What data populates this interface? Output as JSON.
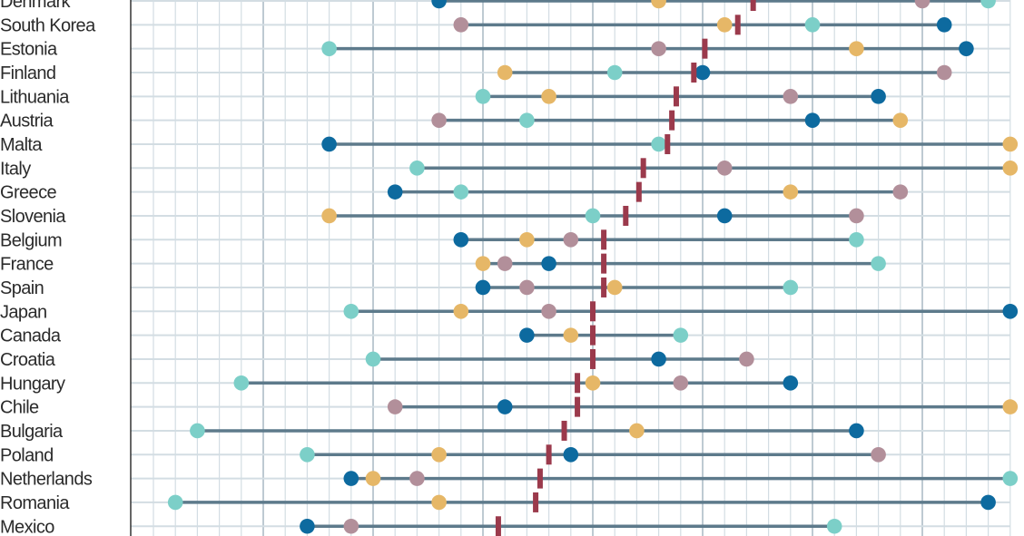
{
  "chart_data": {
    "type": "dot-range",
    "title": "",
    "xlabel": "",
    "ylabel": "",
    "xlim": [
      -1,
      39
    ],
    "x_major_step": 5,
    "x_minor_step": 1,
    "grid": true,
    "legend": "none",
    "categories": [
      "Denmark",
      "South Korea",
      "Estonia",
      "Finland",
      "Lithuania",
      "Austria",
      "Malta",
      "Italy",
      "Greece",
      "Slovenia",
      "Belgium",
      "France",
      "Spain",
      "Japan",
      "Canada",
      "Croatia",
      "Hungary",
      "Chile",
      "Bulgaria",
      "Poland",
      "Netherlands",
      "Romania",
      "Mexico"
    ],
    "series": [
      {
        "color": "#0d6a9f",
        "values": [
          13,
          36,
          37,
          25,
          33,
          30,
          8,
          null,
          11,
          26,
          14,
          18,
          15,
          39,
          17,
          23,
          29,
          16,
          32,
          19,
          9,
          38,
          7
        ]
      },
      {
        "color": "#7ccfc8",
        "values": [
          38,
          30,
          8,
          21,
          15,
          17,
          23,
          12,
          14,
          20,
          32,
          33,
          29,
          9,
          24,
          10,
          4,
          null,
          2,
          7,
          39,
          1,
          31
        ]
      },
      {
        "color": "#e6b767",
        "values": [
          23,
          26,
          32,
          16,
          18,
          34,
          39,
          39,
          29,
          8,
          17,
          15,
          21,
          14,
          19,
          null,
          20,
          39,
          22,
          13,
          10,
          13,
          null
        ]
      },
      {
        "color": "#b28f9a",
        "values": [
          35,
          14,
          23,
          36,
          29,
          13,
          null,
          26,
          34,
          32,
          19,
          16,
          17,
          18,
          null,
          27,
          24,
          11,
          null,
          33,
          12,
          null,
          9
        ]
      }
    ],
    "marker": {
      "color": "#9b3a4c",
      "values": [
        27.3,
        26.6,
        25.1,
        24.6,
        23.8,
        23.6,
        23.4,
        22.3,
        22.1,
        21.5,
        20.5,
        20.5,
        20.5,
        20.0,
        20.0,
        20.0,
        19.3,
        19.3,
        18.7,
        18.0,
        17.6,
        17.4,
        15.7
      ]
    },
    "range_line_color": "#5d7a8b",
    "grid_color": "#d3dde3",
    "major_grid_color": "#aebdc7"
  }
}
